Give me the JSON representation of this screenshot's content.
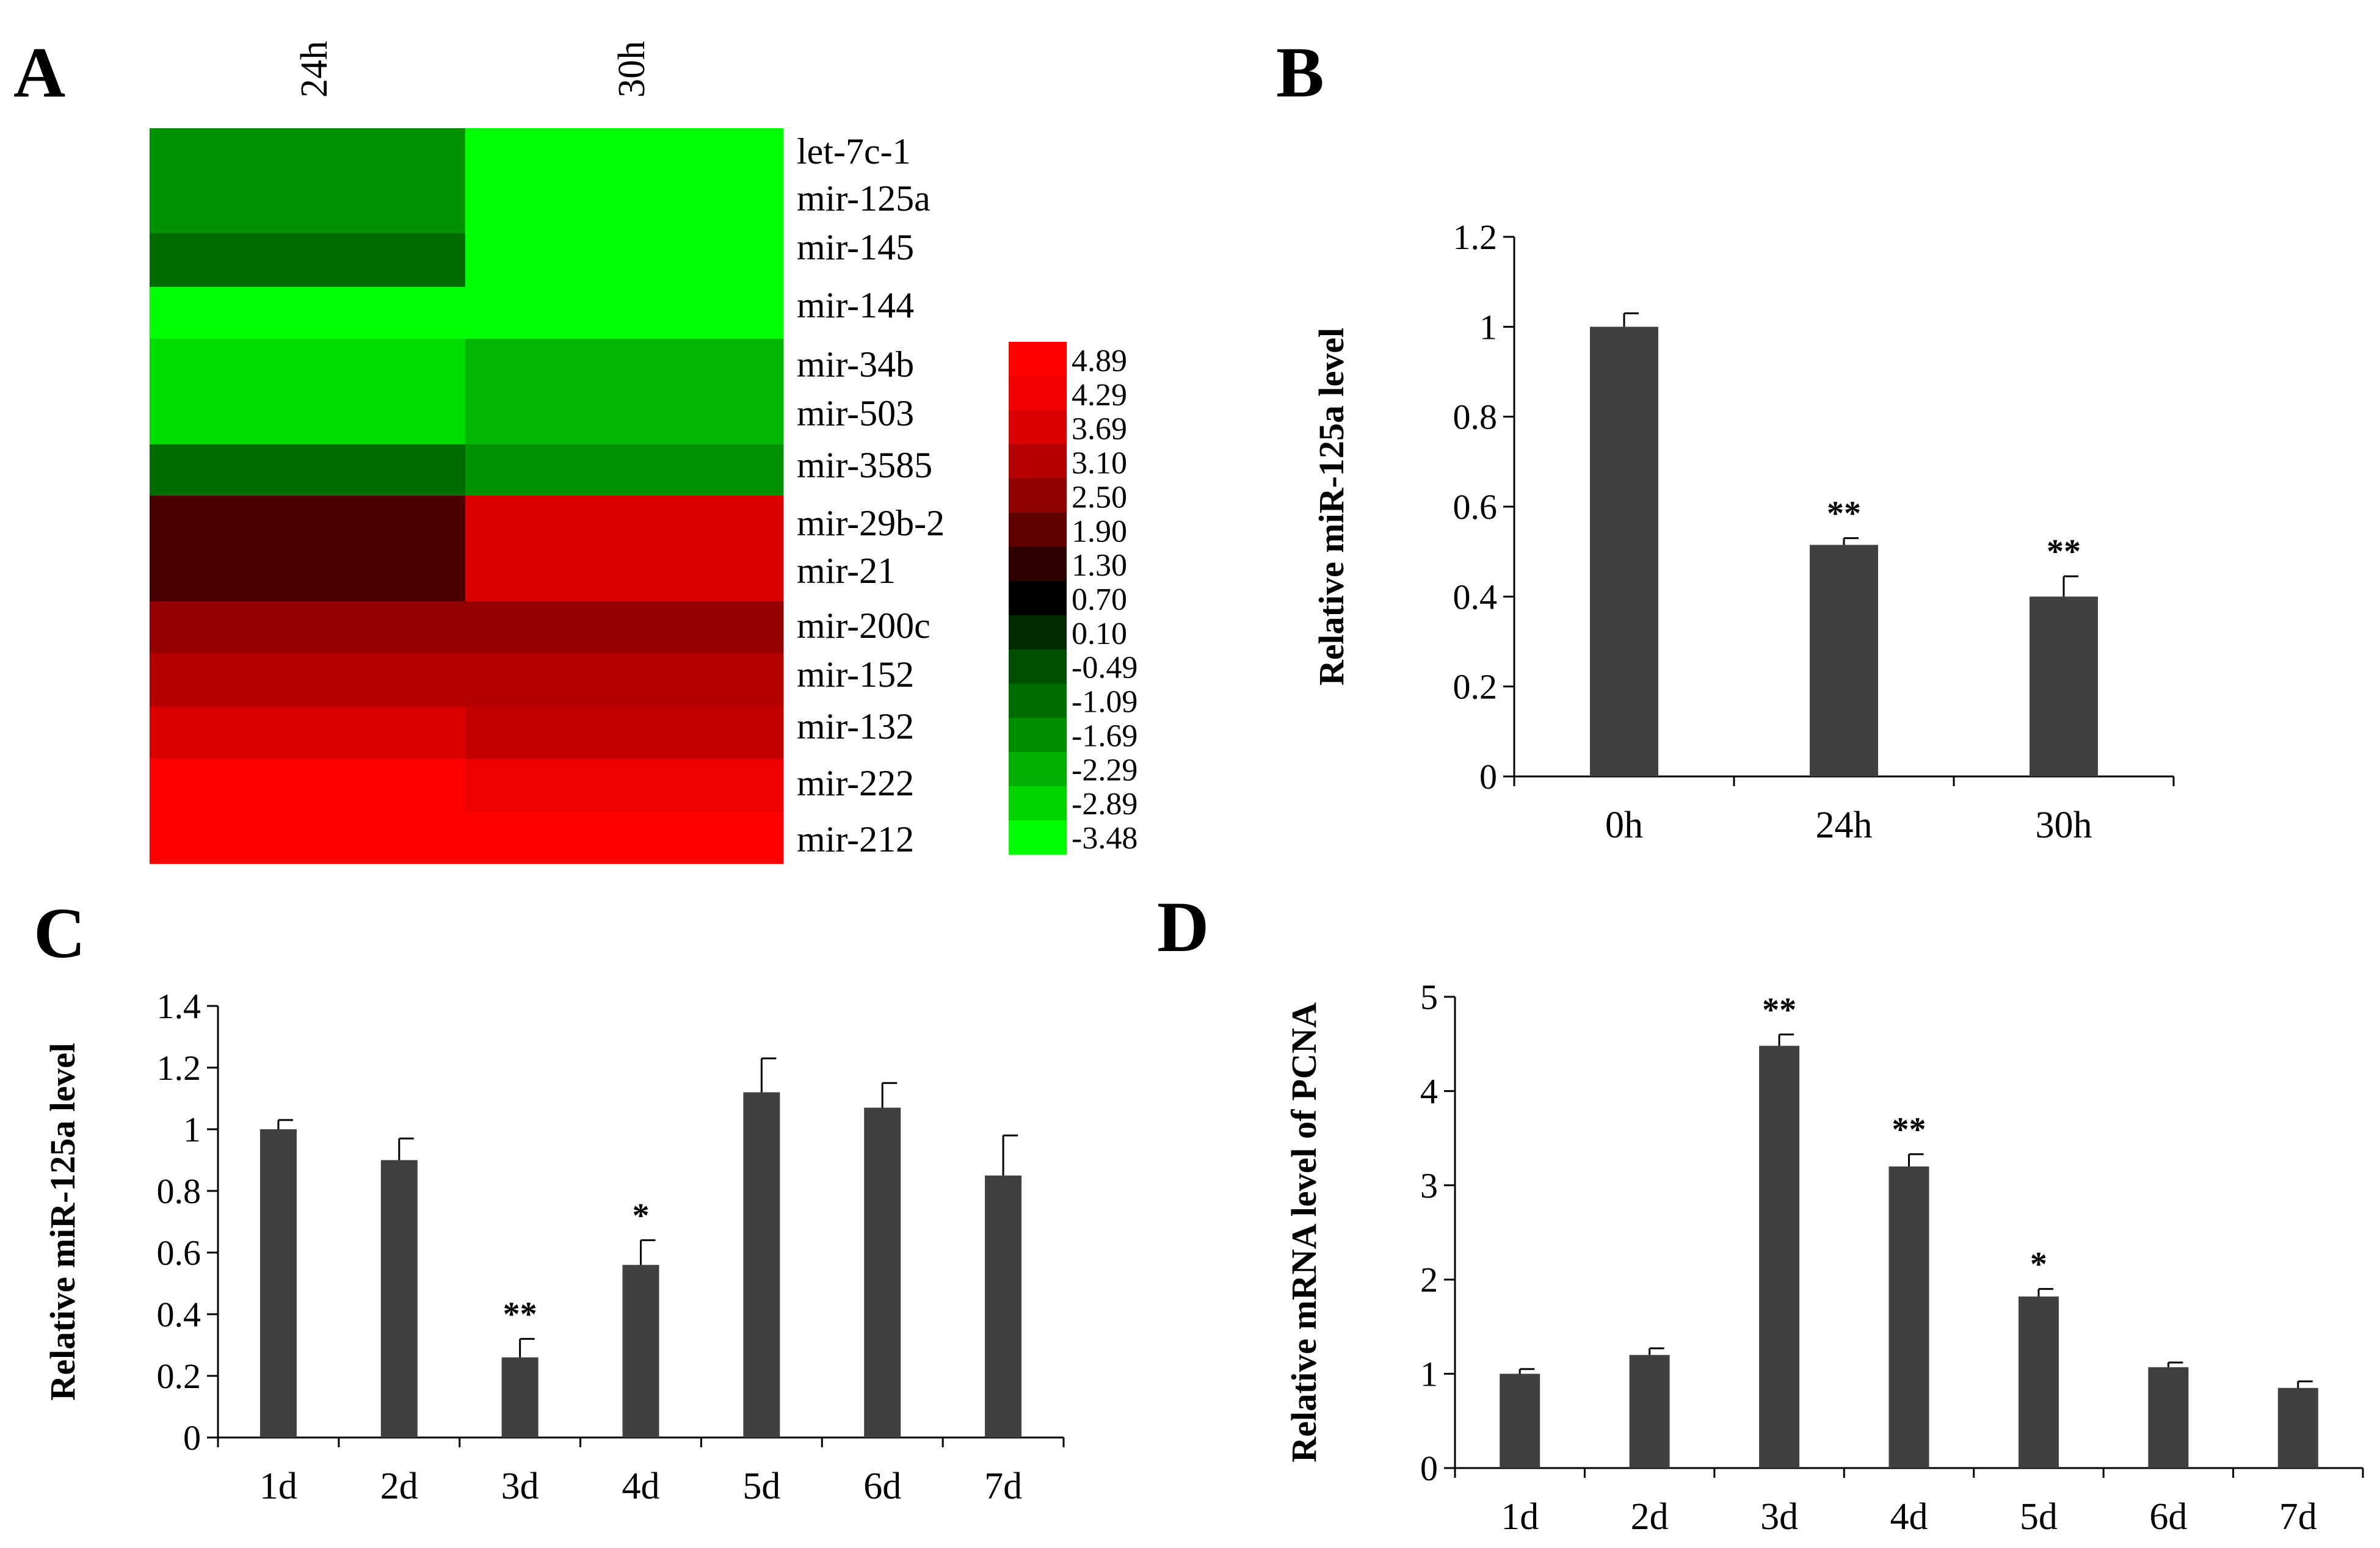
{
  "chart_data": [
    {
      "panel": "A",
      "type": "heatmap",
      "columns": [
        "24h",
        "30h"
      ],
      "rows": [
        "let-7c-1",
        "mir-125a",
        "mir-145",
        "mir-144",
        "mir-34b",
        "mir-503",
        "mir-3585",
        "mir-29b-2",
        "mir-21",
        "mir-200c",
        "mir-152",
        "mir-132",
        "mir-222",
        "mir-212"
      ],
      "values": [
        [
          -1.69,
          -3.48
        ],
        [
          -1.69,
          -3.48
        ],
        [
          -1.09,
          -3.48
        ],
        [
          -3.48,
          -3.48
        ],
        [
          -2.89,
          -2.29
        ],
        [
          -2.89,
          -2.29
        ],
        [
          -1.09,
          -1.69
        ],
        [
          1.9,
          4.29
        ],
        [
          1.9,
          4.29
        ],
        [
          3.1,
          3.1
        ],
        [
          3.69,
          3.69
        ],
        [
          4.29,
          3.9
        ],
        [
          4.89,
          4.6
        ],
        [
          4.89,
          4.89
        ]
      ],
      "color_scale": {
        "labels": [
          "4.89",
          "4.29",
          "3.69",
          "3.10",
          "2.50",
          "1.90",
          "1.30",
          "0.70",
          "0.10",
          "-0.49",
          "-1.09",
          "-1.69",
          "-2.29",
          "-2.89",
          "-3.48"
        ],
        "colors": [
          "#ff0000",
          "#f00000",
          "#d80000",
          "#b40000",
          "#8c0000",
          "#600000",
          "#2e0000",
          "#000000",
          "#002a00",
          "#004c00",
          "#006d00",
          "#008e00",
          "#00b000",
          "#00d400",
          "#00fc00"
        ],
        "low_color": "#00ff00",
        "mid_color": "#000000",
        "high_color": "#ff0000",
        "min": -3.48,
        "max": 4.89
      }
    },
    {
      "panel": "B",
      "type": "bar",
      "categories": [
        "0h",
        "24h",
        "30h"
      ],
      "values": [
        1.0,
        0.515,
        0.4
      ],
      "errors": [
        0.03,
        0.015,
        0.045
      ],
      "significance": [
        "",
        "**",
        "**"
      ],
      "ylabel": "Relative miR-125a  level",
      "ylim": [
        0,
        1.2
      ],
      "yticks": [
        "0",
        "0.2",
        "0.4",
        "0.6",
        "0.8",
        "1",
        "1.2"
      ],
      "bar_color": "#404040"
    },
    {
      "panel": "C",
      "type": "bar",
      "categories": [
        "1d",
        "2d",
        "3d",
        "4d",
        "5d",
        "6d",
        "7d"
      ],
      "values": [
        1.0,
        0.9,
        0.26,
        0.56,
        1.12,
        1.07,
        0.85
      ],
      "errors": [
        0.03,
        0.07,
        0.06,
        0.08,
        0.11,
        0.08,
        0.13
      ],
      "significance": [
        "",
        "",
        "**",
        "*",
        "",
        "",
        ""
      ],
      "ylabel": "Relative miR-125a  level",
      "ylim": [
        0,
        1.4
      ],
      "yticks": [
        "0",
        "0.2",
        "0.4",
        "0.6",
        "0.8",
        "1",
        "1.2",
        "1.4"
      ],
      "bar_color": "#404040"
    },
    {
      "panel": "D",
      "type": "bar",
      "categories": [
        "1d",
        "2d",
        "3d",
        "4d",
        "5d",
        "6d",
        "7d"
      ],
      "values": [
        1.0,
        1.2,
        4.48,
        3.2,
        1.82,
        1.07,
        0.85
      ],
      "errors": [
        0.05,
        0.07,
        0.12,
        0.13,
        0.08,
        0.05,
        0.07
      ],
      "significance": [
        "",
        "",
        "**",
        "**",
        "*",
        "",
        ""
      ],
      "ylabel": "Relative  mRNA level of  PCNA",
      "ylim": [
        0,
        5
      ],
      "yticks": [
        "0",
        "1",
        "2",
        "3",
        "4",
        "5"
      ],
      "bar_color": "#404040"
    }
  ]
}
